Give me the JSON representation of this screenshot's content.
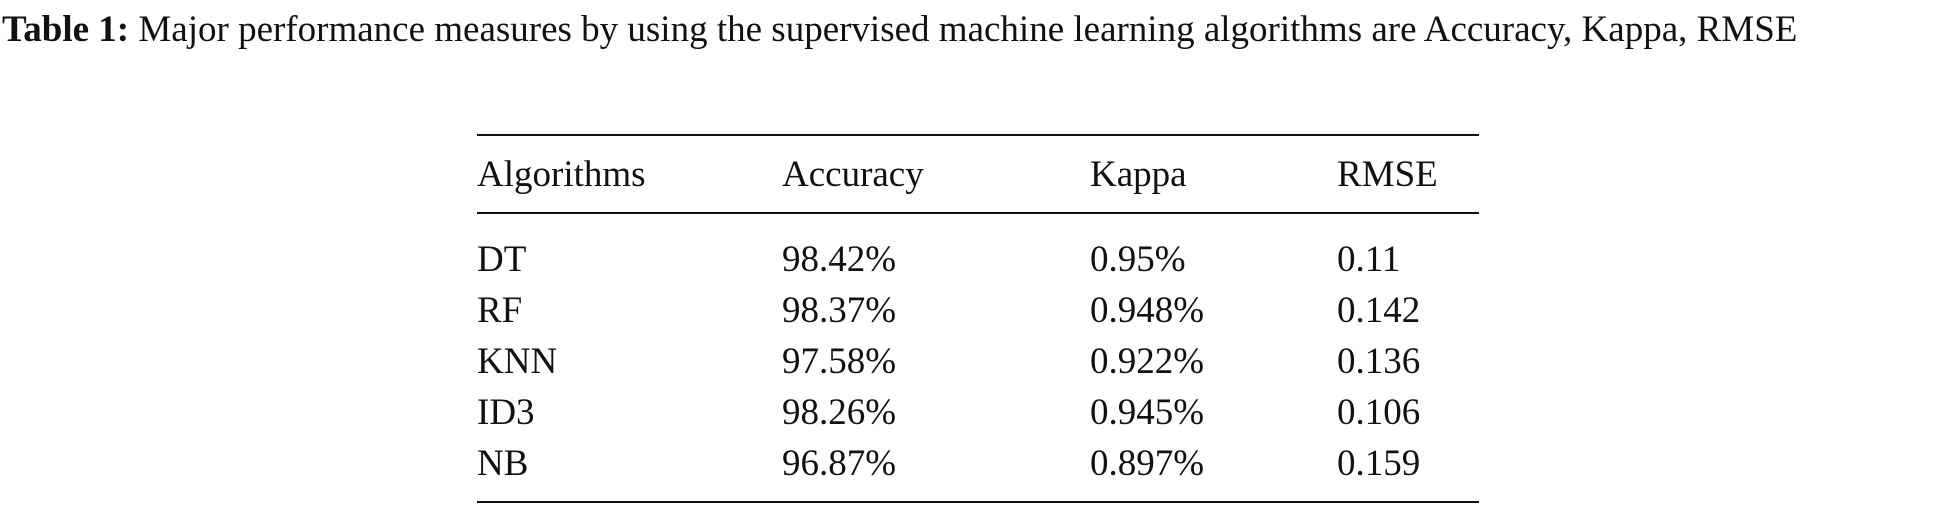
{
  "caption": {
    "label": "Table 1:",
    "text": "Major performance measures by using the supervised machine learning algorithms are Accuracy, Kappa, RMSE"
  },
  "table": {
    "header": [
      "Algorithms",
      "Accuracy",
      "Kappa",
      "RMSE"
    ],
    "rows": [
      [
        "DT",
        "98.42%",
        "0.95%",
        "0.11"
      ],
      [
        "RF",
        "98.37%",
        "0.948%",
        "0.142"
      ],
      [
        "KNN",
        "97.58%",
        "0.922%",
        "0.136"
      ],
      [
        "ID3",
        "98.26%",
        "0.945%",
        "0.106"
      ],
      [
        "NB",
        "96.87%",
        "0.897%",
        "0.159"
      ]
    ]
  }
}
